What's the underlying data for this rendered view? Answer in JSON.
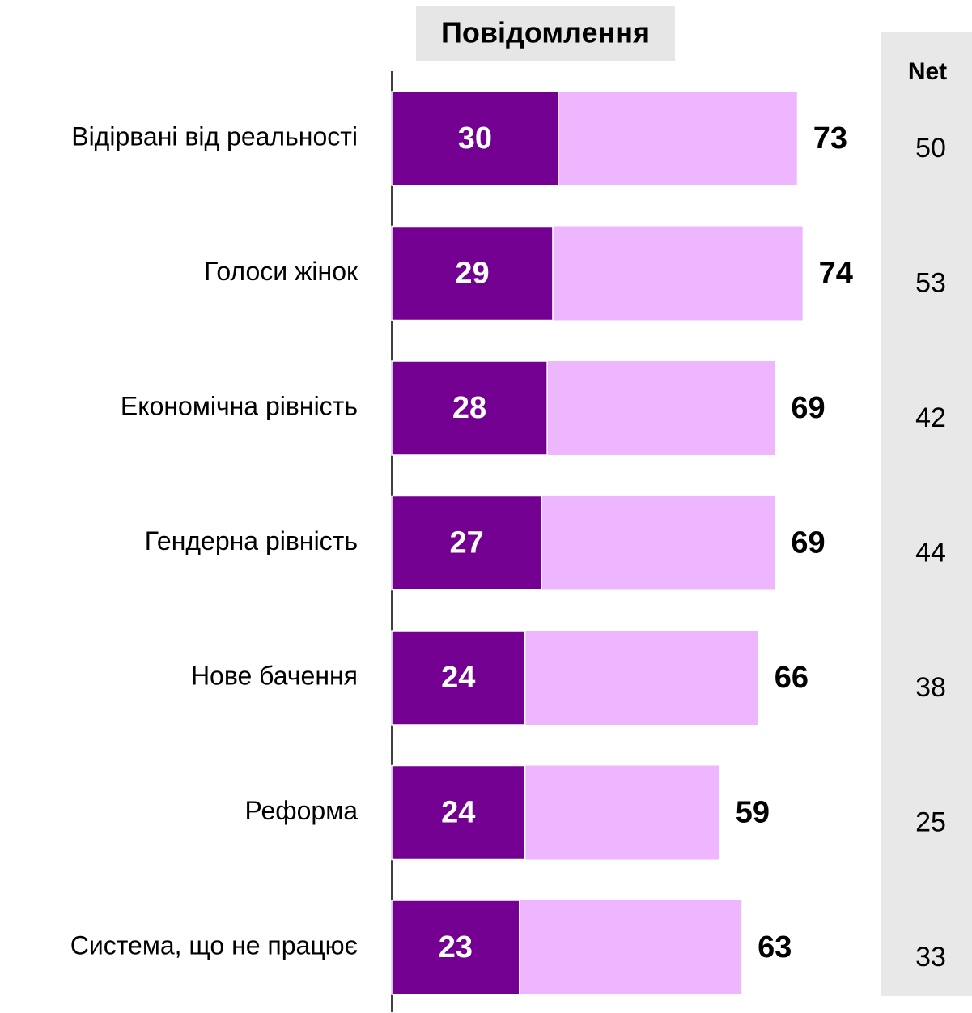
{
  "chart_data": {
    "type": "bar",
    "orientation": "horizontal",
    "title": "Повідомлення",
    "categories": [
      "Відірвані від реальності",
      "Голоси жінок",
      "Економічна рівність",
      "Гендерна рівність",
      "Нове бачення",
      "Реформа",
      "Система, що не працює"
    ],
    "series": [
      {
        "color": "#730090",
        "values": [
          30,
          29,
          28,
          27,
          24,
          24,
          23
        ]
      },
      {
        "color": "#eeb6ff",
        "values": [
          73,
          74,
          69,
          69,
          66,
          59,
          63
        ]
      }
    ],
    "net_header": "Net",
    "net": [
      50,
      53,
      42,
      44,
      38,
      25,
      33
    ]
  }
}
